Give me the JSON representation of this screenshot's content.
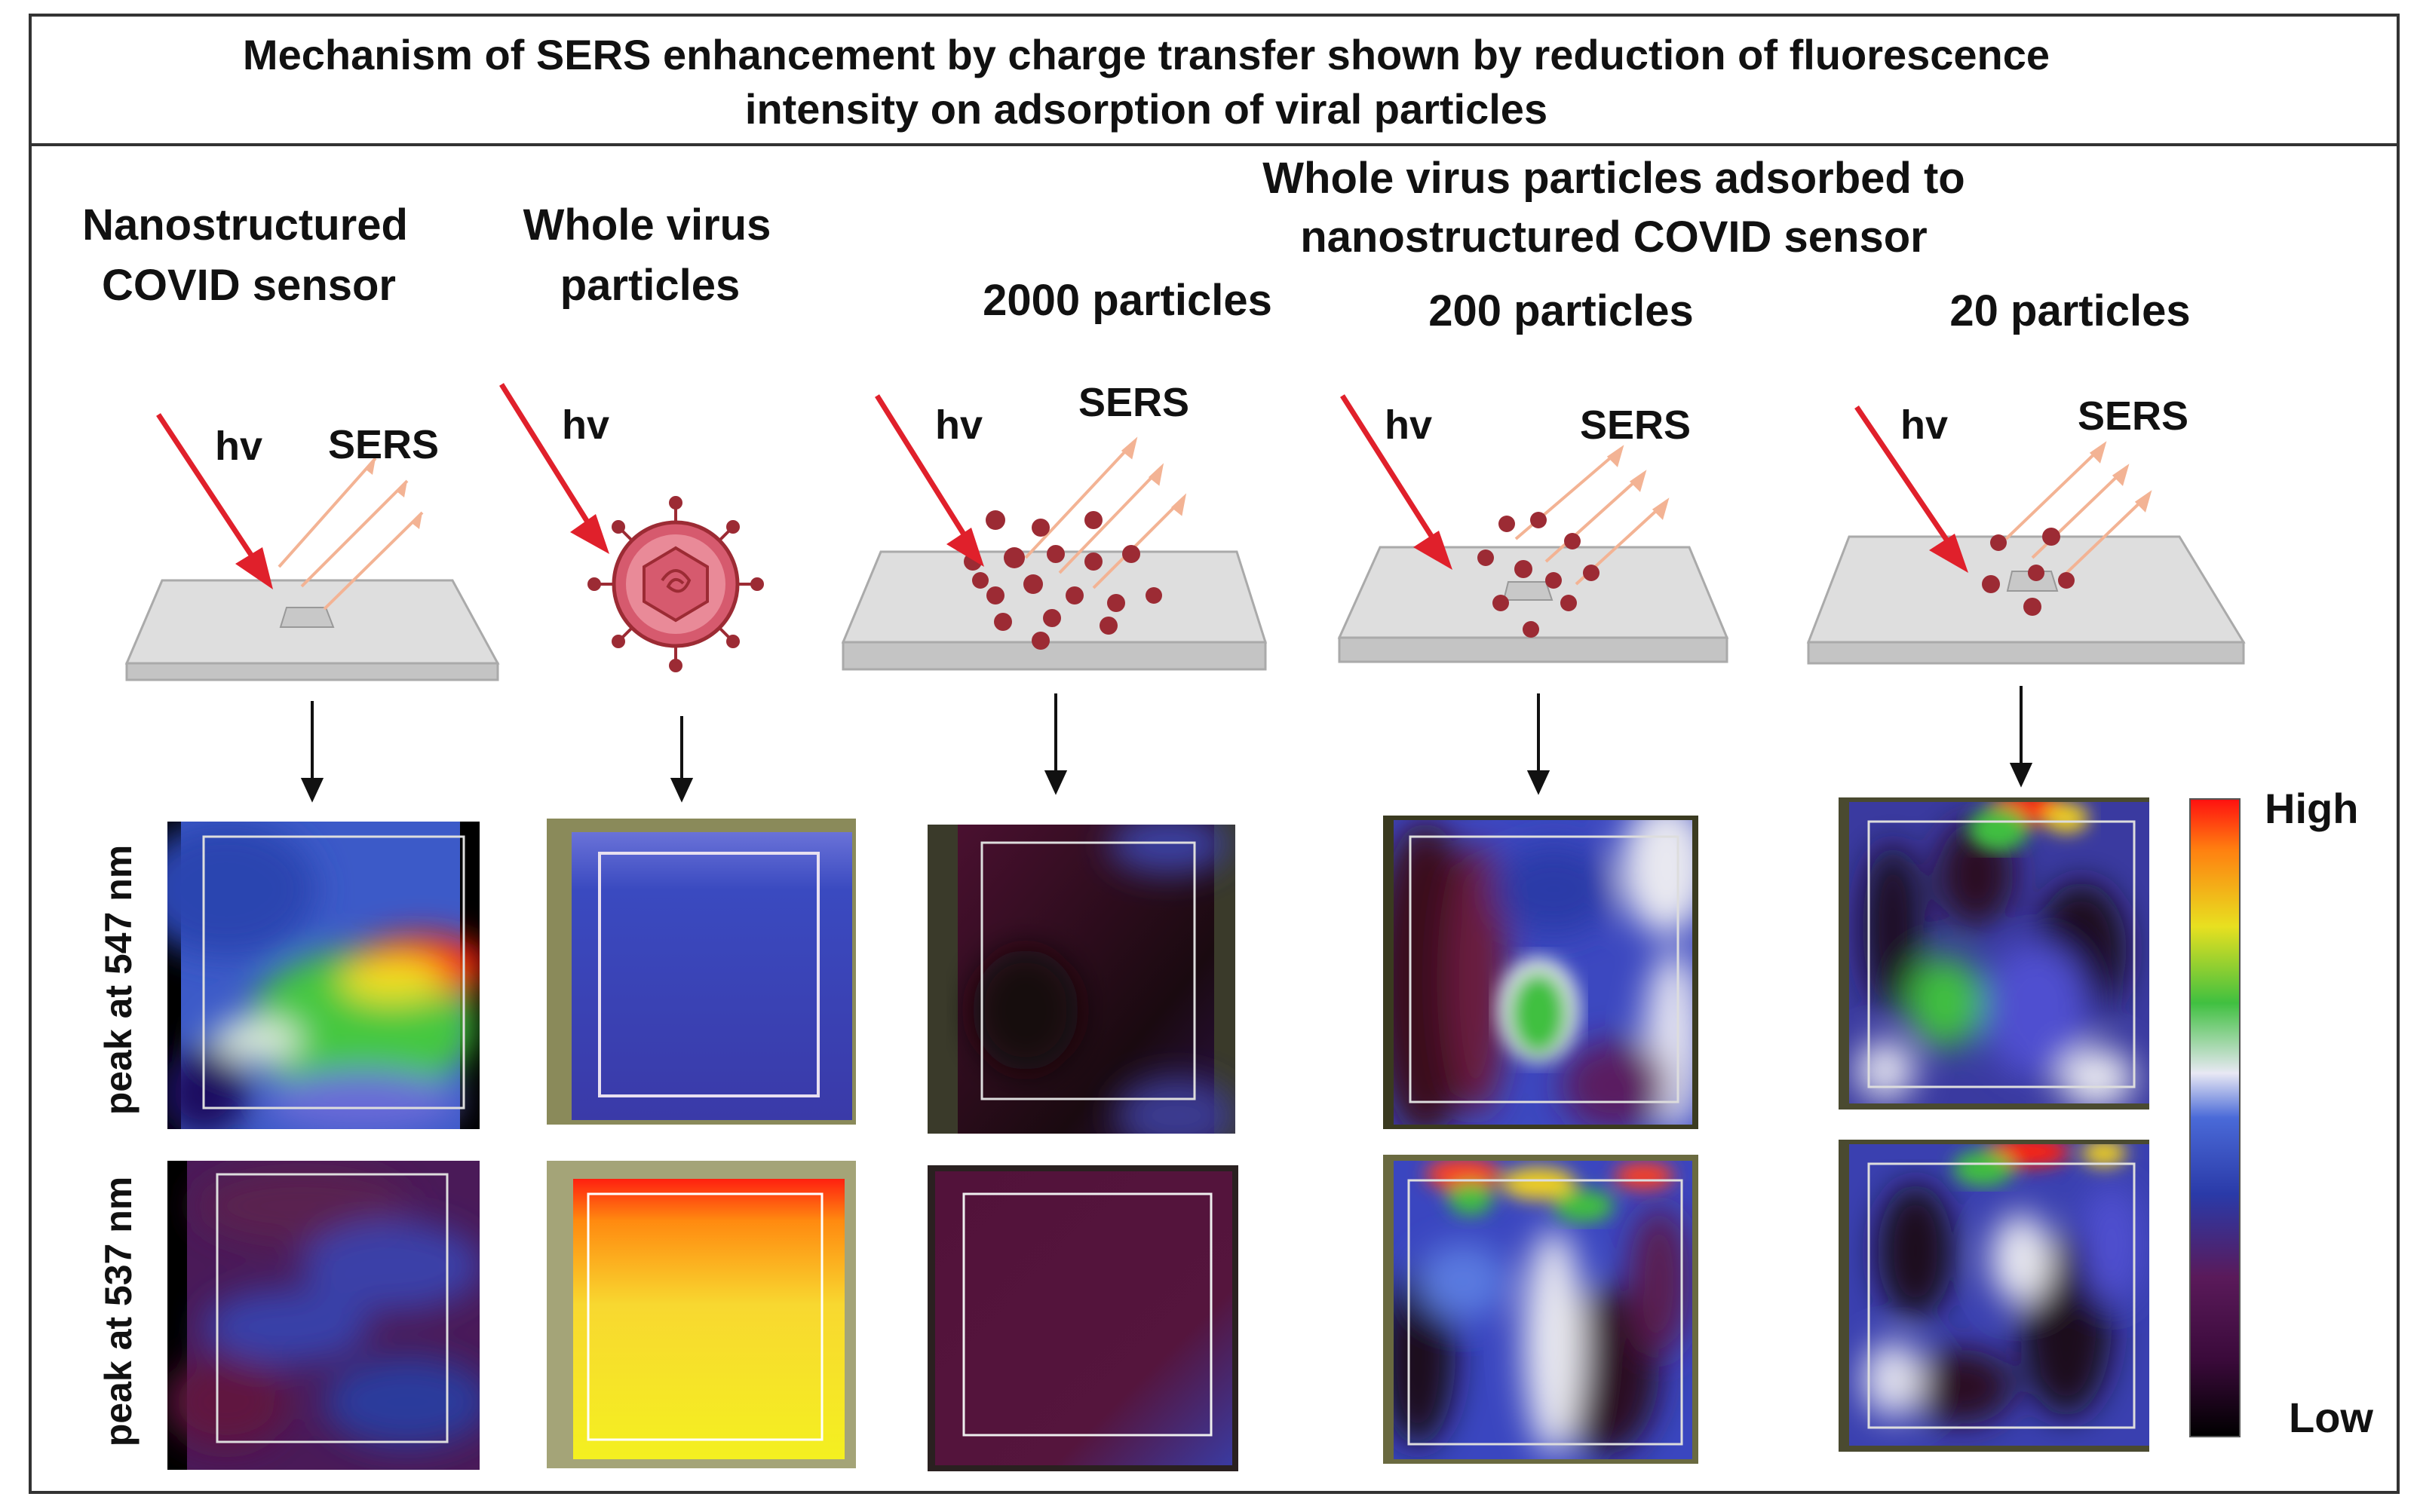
{
  "title_line1": "Mechanism of SERS enhancement by charge transfer shown by reduction of fluorescence",
  "title_line2": "intensity on adsorption of viral particles",
  "group_header_line1": "Whole virus particles adsorbed to",
  "group_header_line2": "nanostructured COVID sensor",
  "columns": [
    {
      "label_line1": "Nanostructured",
      "label_line2": "COVID sensor",
      "hv": "hv",
      "sers": "SERS"
    },
    {
      "label_line1": "Whole virus",
      "label_line2": "particles",
      "hv": "hv",
      "sers": ""
    },
    {
      "label_line1": "2000 particles",
      "label_line2": "",
      "hv": "hv",
      "sers": "SERS"
    },
    {
      "label_line1": "200 particles",
      "label_line2": "",
      "hv": "hv",
      "sers": "SERS"
    },
    {
      "label_line1": "20 particles",
      "label_line2": "",
      "hv": "hv",
      "sers": "SERS"
    }
  ],
  "row_labels": [
    "peak at 547 nm",
    "peak at 537 nm"
  ],
  "colorbar": {
    "high": "High",
    "low": "Low"
  },
  "colors": {
    "laser": "#e0202b",
    "virus": "#9c2b34",
    "sers_arrow": "#f3b394",
    "plate": "#dcdcdc",
    "frame_olive": "#8a8a5a"
  }
}
